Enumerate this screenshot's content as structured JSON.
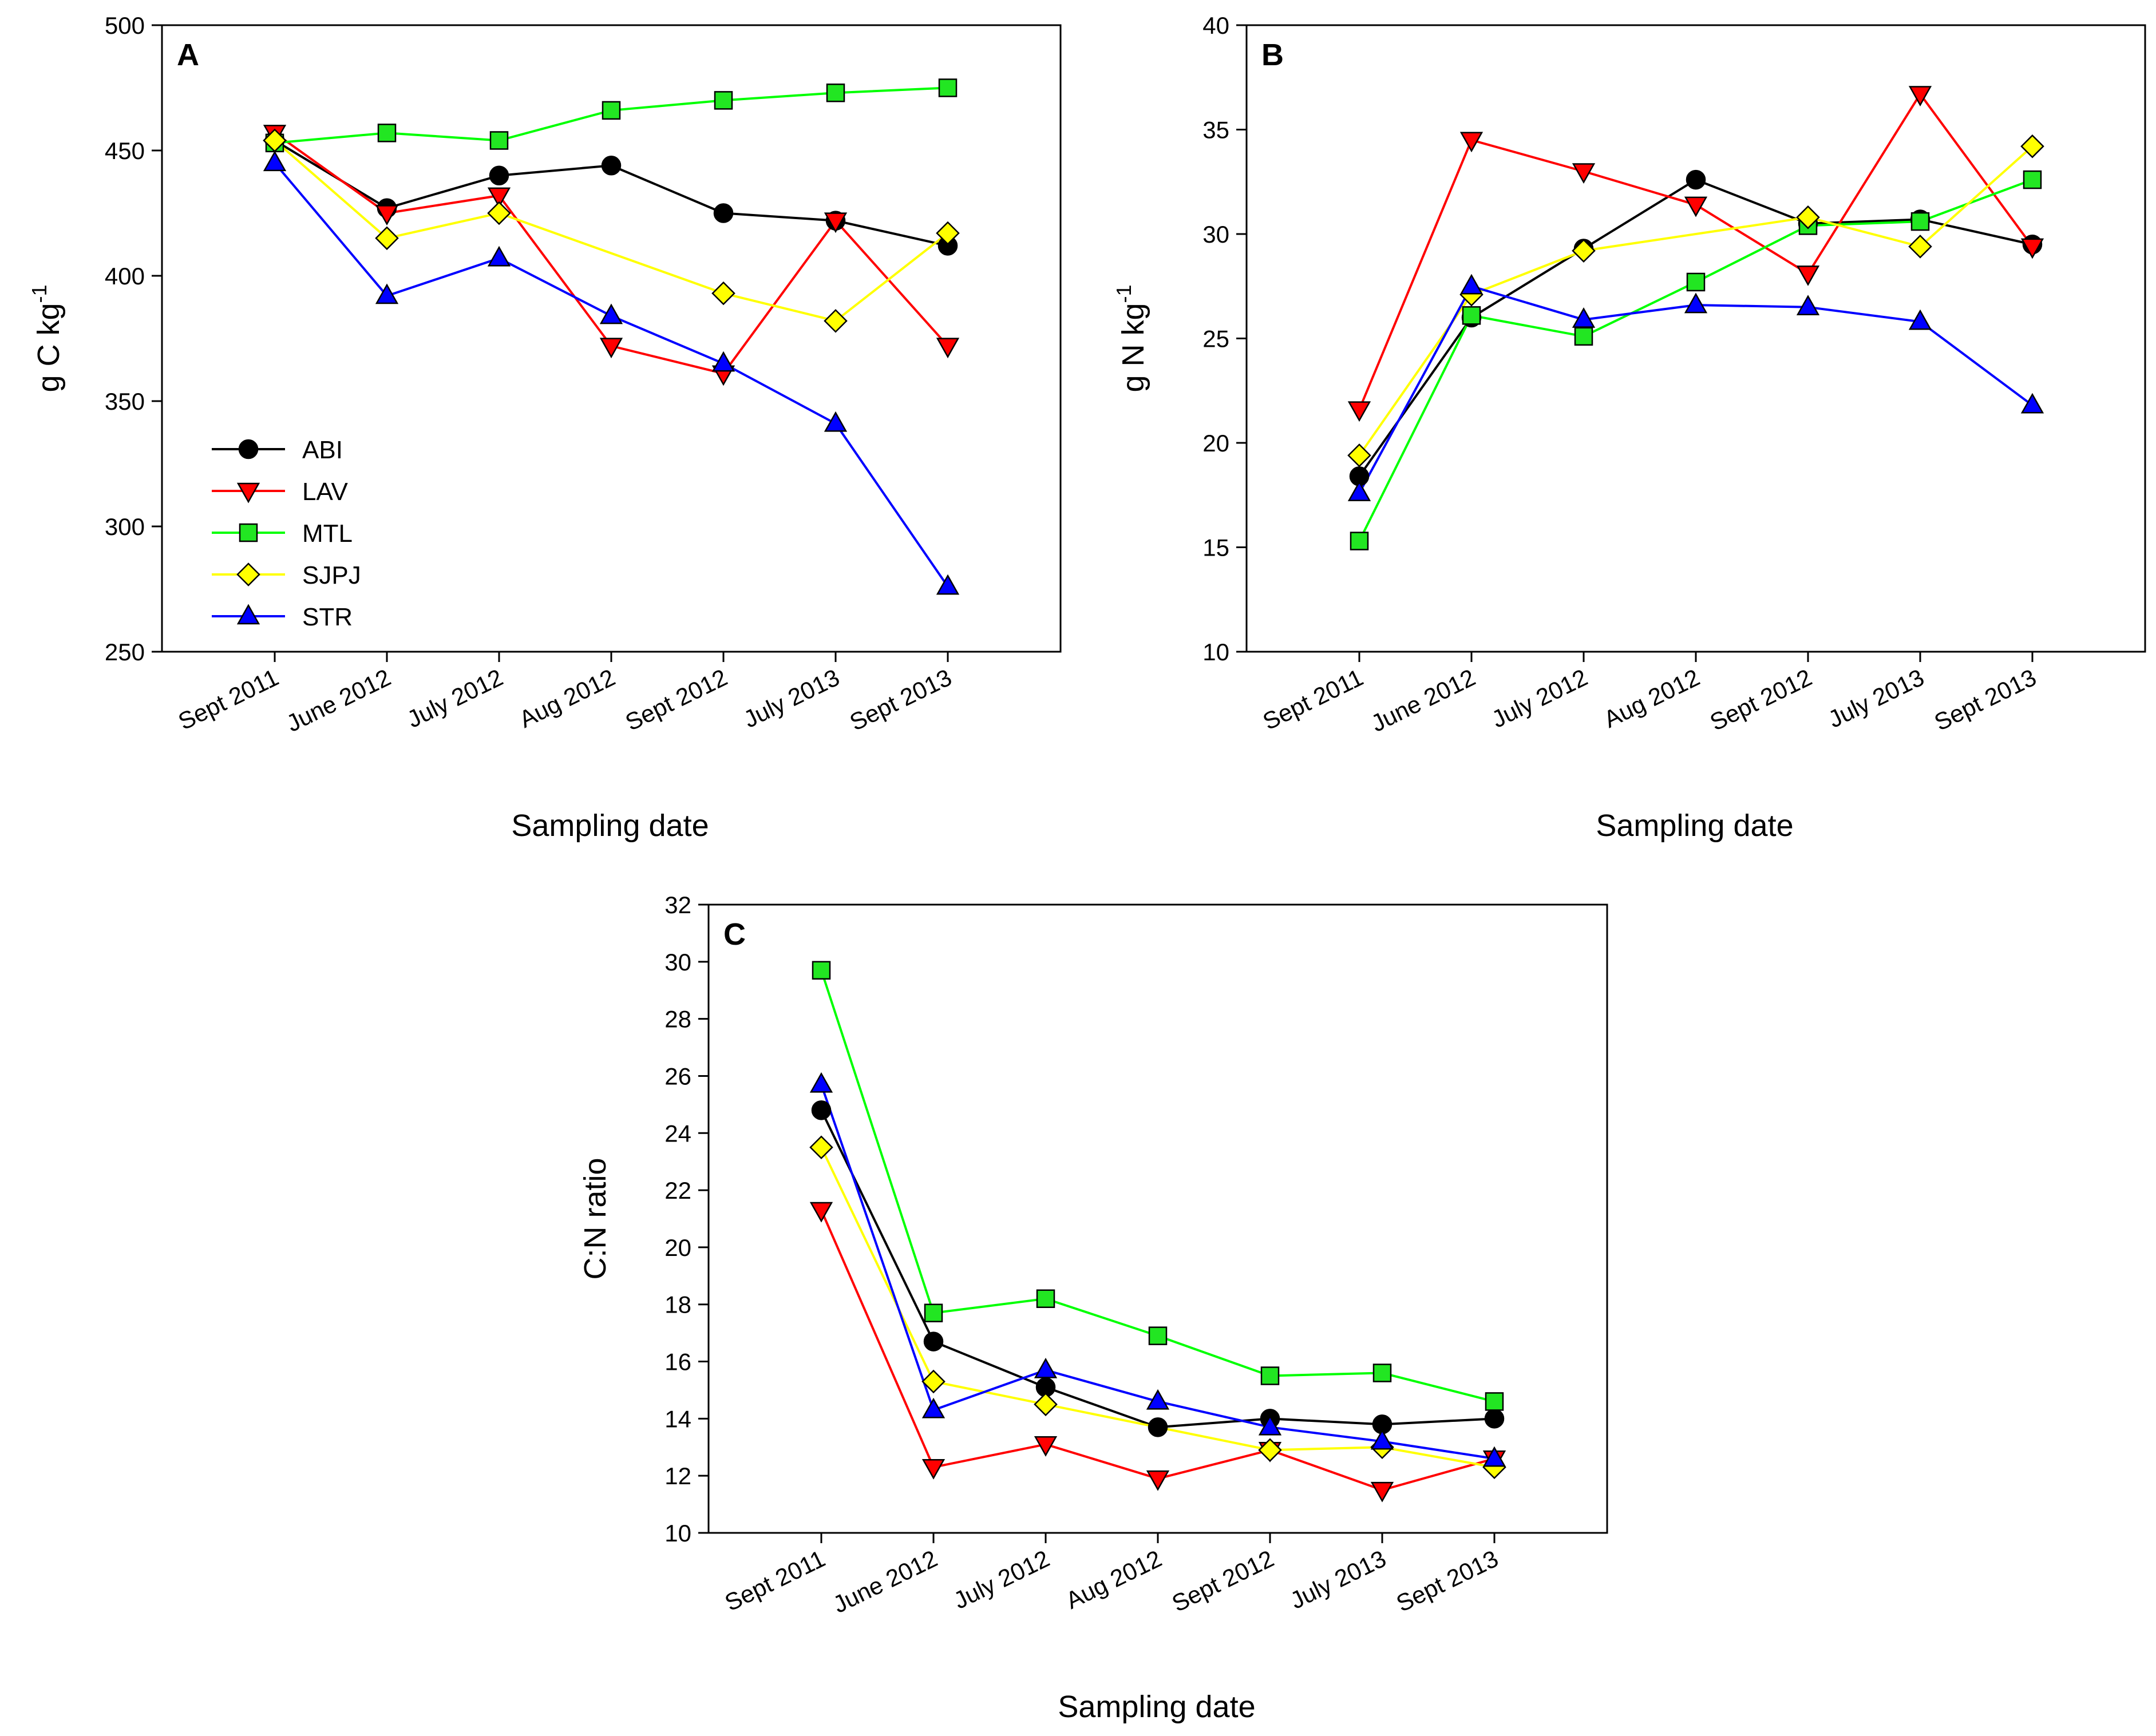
{
  "chart_data": [
    {
      "panel": "A",
      "type": "line",
      "xlabel": "Sampling date",
      "ylabel": "g C kg",
      "ylabel_sup": "-1",
      "ylim": [
        250,
        500
      ],
      "yticks": [
        250,
        300,
        350,
        400,
        450,
        500
      ],
      "categories": [
        "Sept 2011",
        "June 2012",
        "July 2012",
        "Aug 2012",
        "Sept 2012",
        "July 2013",
        "Sept 2013"
      ],
      "legend": {
        "position": "bottom-left",
        "entries": [
          "ABI",
          "LAV",
          "MTL",
          "SJPJ",
          "STR"
        ]
      },
      "series": [
        {
          "name": "ABI",
          "values": [
            454,
            427,
            440,
            444,
            425,
            422,
            412
          ]
        },
        {
          "name": "LAV",
          "values": [
            457,
            425,
            432,
            372,
            361,
            422,
            372
          ]
        },
        {
          "name": "MTL",
          "values": [
            453,
            457,
            454,
            466,
            470,
            473,
            475
          ]
        },
        {
          "name": "SJPJ",
          "values": [
            454,
            415,
            425,
            null,
            393,
            382,
            417
          ]
        },
        {
          "name": "STR",
          "values": [
            445,
            392,
            407,
            384,
            365,
            341,
            276
          ]
        }
      ]
    },
    {
      "panel": "B",
      "type": "line",
      "xlabel": "Sampling date",
      "ylabel": "g N kg",
      "ylabel_sup": "-1",
      "ylim": [
        10,
        40
      ],
      "yticks": [
        10,
        15,
        20,
        25,
        30,
        35,
        40
      ],
      "categories": [
        "Sept 2011",
        "June 2012",
        "July 2012",
        "Aug 2012",
        "Sept 2012",
        "July 2013",
        "Sept 2013"
      ],
      "series": [
        {
          "name": "ABI",
          "values": [
            18.4,
            26.0,
            29.3,
            32.6,
            30.5,
            30.7,
            29.5
          ]
        },
        {
          "name": "LAV",
          "values": [
            21.6,
            34.5,
            33.0,
            31.4,
            28.1,
            36.7,
            29.4
          ]
        },
        {
          "name": "MTL",
          "values": [
            15.3,
            26.1,
            25.1,
            27.7,
            30.4,
            30.6,
            32.6
          ]
        },
        {
          "name": "SJPJ",
          "values": [
            19.4,
            27.1,
            29.2,
            null,
            30.8,
            29.4,
            34.2
          ]
        },
        {
          "name": "STR",
          "values": [
            17.6,
            27.5,
            25.9,
            26.6,
            26.5,
            25.8,
            21.8
          ]
        }
      ]
    },
    {
      "panel": "C",
      "type": "line",
      "xlabel": "Sampling date",
      "ylabel": "C:N ratio",
      "ylabel_sup": "",
      "ylim": [
        10,
        32
      ],
      "yticks": [
        10,
        12,
        14,
        16,
        18,
        20,
        22,
        24,
        26,
        28,
        30,
        32
      ],
      "categories": [
        "Sept 2011",
        "June 2012",
        "July 2012",
        "Aug 2012",
        "Sept 2012",
        "July 2013",
        "Sept 2013"
      ],
      "series": [
        {
          "name": "ABI",
          "values": [
            24.8,
            16.7,
            15.1,
            13.7,
            14.0,
            13.8,
            14.0
          ]
        },
        {
          "name": "LAV",
          "values": [
            21.3,
            12.3,
            13.1,
            11.9,
            12.9,
            11.5,
            12.6
          ]
        },
        {
          "name": "MTL",
          "values": [
            29.7,
            17.7,
            18.2,
            16.9,
            15.5,
            15.6,
            14.6
          ]
        },
        {
          "name": "SJPJ",
          "values": [
            23.5,
            15.3,
            14.5,
            null,
            12.9,
            13.0,
            12.3
          ]
        },
        {
          "name": "STR",
          "values": [
            25.7,
            14.3,
            15.7,
            14.6,
            13.7,
            13.2,
            12.6
          ]
        }
      ]
    }
  ],
  "series_colors": {
    "ABI": "#000000",
    "LAV": "#ff0000",
    "MTL": "#00ff00",
    "SJPJ": "#ffff00",
    "STR": "#0000ff"
  },
  "series_fill": {
    "ABI": "#000000",
    "LAV": "#ff0000",
    "MTL": "#22e622",
    "SJPJ": "#ffff00",
    "STR": "#0000ff"
  },
  "series_markers": {
    "ABI": "circle",
    "LAV": "triangle-down",
    "MTL": "square",
    "SJPJ": "diamond",
    "STR": "triangle-up"
  }
}
